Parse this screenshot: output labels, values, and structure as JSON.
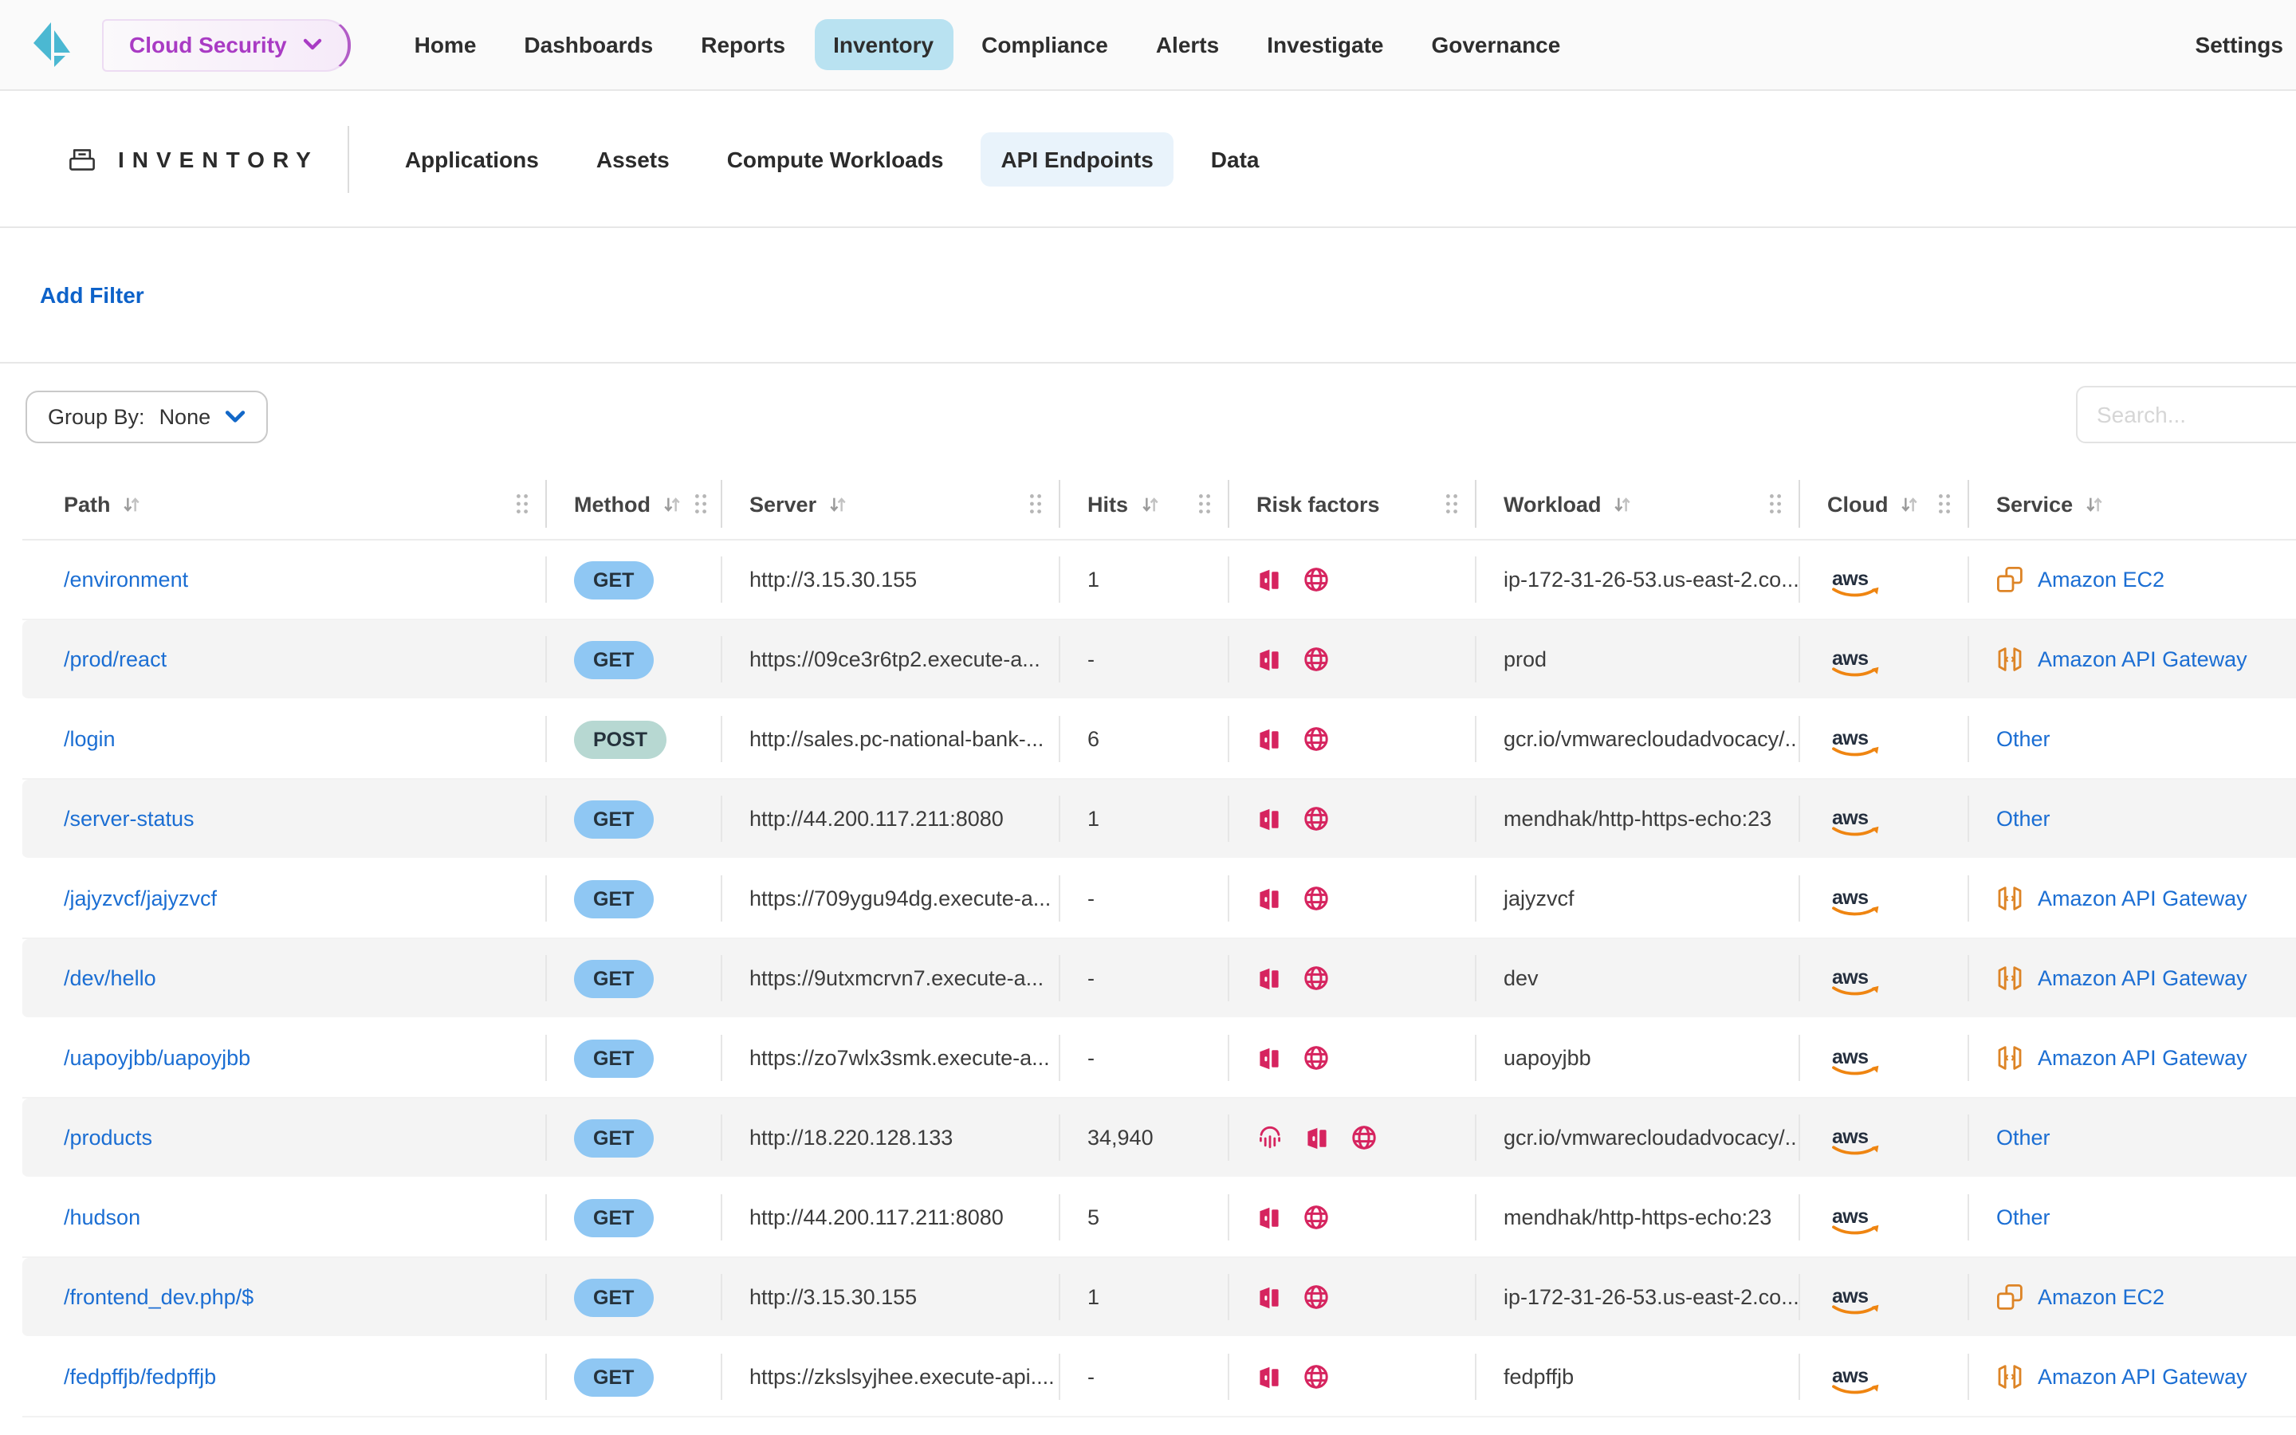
{
  "brand": {
    "product_label": "Cloud Security"
  },
  "topnav": {
    "items": [
      {
        "label": "Home",
        "active": false
      },
      {
        "label": "Dashboards",
        "active": false
      },
      {
        "label": "Reports",
        "active": false
      },
      {
        "label": "Inventory",
        "active": true
      },
      {
        "label": "Compliance",
        "active": false
      },
      {
        "label": "Alerts",
        "active": false
      },
      {
        "label": "Investigate",
        "active": false
      },
      {
        "label": "Governance",
        "active": false
      }
    ],
    "settings_label": "Settings"
  },
  "page": {
    "title": "INVENTORY",
    "tabs": [
      {
        "label": "Applications",
        "active": false
      },
      {
        "label": "Assets",
        "active": false
      },
      {
        "label": "Compute Workloads",
        "active": false
      },
      {
        "label": "API Endpoints",
        "active": true
      },
      {
        "label": "Data",
        "active": false
      }
    ]
  },
  "filters": {
    "add_filter_label": "Add Filter",
    "group_by_label": "Group By:",
    "group_by_value": "None",
    "search_placeholder": "Search..."
  },
  "table": {
    "columns": [
      {
        "id": "path",
        "label": "Path",
        "sortable": true
      },
      {
        "id": "method",
        "label": "Method",
        "sortable": true
      },
      {
        "id": "server",
        "label": "Server",
        "sortable": true
      },
      {
        "id": "hits",
        "label": "Hits",
        "sortable": true
      },
      {
        "id": "risk",
        "label": "Risk factors",
        "sortable": false
      },
      {
        "id": "workload",
        "label": "Workload",
        "sortable": true
      },
      {
        "id": "cloud",
        "label": "Cloud",
        "sortable": true
      },
      {
        "id": "service",
        "label": "Service",
        "sortable": true
      }
    ],
    "rows": [
      {
        "path": "/environment",
        "method": "GET",
        "server": "http://3.15.30.155",
        "hits": "1",
        "risk_factors": [
          "open-door",
          "globe"
        ],
        "workload": "ip-172-31-26-53.us-east-2.co...",
        "cloud": "aws",
        "service": "Amazon EC2",
        "service_icon": "ec2"
      },
      {
        "path": "/prod/react",
        "method": "GET",
        "server": "https://09ce3r6tp2.execute-a...",
        "hits": "-",
        "risk_factors": [
          "open-door",
          "globe"
        ],
        "workload": "prod",
        "cloud": "aws",
        "service": "Amazon API Gateway",
        "service_icon": "api-gateway"
      },
      {
        "path": "/login",
        "method": "POST",
        "server": "http://sales.pc-national-bank-...",
        "hits": "6",
        "risk_factors": [
          "open-door",
          "globe"
        ],
        "workload": "gcr.io/vmwarecloudadvocacy/...",
        "cloud": "aws",
        "service": "Other",
        "service_icon": null
      },
      {
        "path": "/server-status",
        "method": "GET",
        "server": "http://44.200.117.211:8080",
        "hits": "1",
        "risk_factors": [
          "open-door",
          "globe"
        ],
        "workload": "mendhak/http-https-echo:23",
        "cloud": "aws",
        "service": "Other",
        "service_icon": null
      },
      {
        "path": "/jajyzvcf/jajyzvcf",
        "method": "GET",
        "server": "https://709ygu94dg.execute-a...",
        "hits": "-",
        "risk_factors": [
          "open-door",
          "globe"
        ],
        "workload": "jajyzvcf",
        "cloud": "aws",
        "service": "Amazon API Gateway",
        "service_icon": "api-gateway"
      },
      {
        "path": "/dev/hello",
        "method": "GET",
        "server": "https://9utxmcrvn7.execute-a...",
        "hits": "-",
        "risk_factors": [
          "open-door",
          "globe"
        ],
        "workload": "dev",
        "cloud": "aws",
        "service": "Amazon API Gateway",
        "service_icon": "api-gateway"
      },
      {
        "path": "/uapoyjbb/uapoyjbb",
        "method": "GET",
        "server": "https://zo7wlx3smk.execute-a...",
        "hits": "-",
        "risk_factors": [
          "open-door",
          "globe"
        ],
        "workload": "uapoyjbb",
        "cloud": "aws",
        "service": "Amazon API Gateway",
        "service_icon": "api-gateway"
      },
      {
        "path": "/products",
        "method": "GET",
        "server": "http://18.220.128.133",
        "hits": "34,940",
        "risk_factors": [
          "fingerprint",
          "open-door",
          "globe"
        ],
        "workload": "gcr.io/vmwarecloudadvocacy/...",
        "cloud": "aws",
        "service": "Other",
        "service_icon": null
      },
      {
        "path": "/hudson",
        "method": "GET",
        "server": "http://44.200.117.211:8080",
        "hits": "5",
        "risk_factors": [
          "open-door",
          "globe"
        ],
        "workload": "mendhak/http-https-echo:23",
        "cloud": "aws",
        "service": "Other",
        "service_icon": null
      },
      {
        "path": "/frontend_dev.php/$",
        "method": "GET",
        "server": "http://3.15.30.155",
        "hits": "1",
        "risk_factors": [
          "open-door",
          "globe"
        ],
        "workload": "ip-172-31-26-53.us-east-2.co...",
        "cloud": "aws",
        "service": "Amazon EC2",
        "service_icon": "ec2"
      },
      {
        "path": "/fedpffjb/fedpffjb",
        "method": "GET",
        "server": "https://zkslsyjhee.execute-api....",
        "hits": "-",
        "risk_factors": [
          "open-door",
          "globe"
        ],
        "workload": "fedpffjb",
        "cloud": "aws",
        "service": "Amazon API Gateway",
        "service_icon": "api-gateway"
      }
    ]
  },
  "colors": {
    "brand_purple": "#a93bc4",
    "logo_teal": "#4bb8d2",
    "nav_active_bg": "#b9e2f1",
    "tab_active_bg": "#e9f3fb",
    "link_blue": "#1b6ed3",
    "add_filter_blue": "#0d62c9",
    "risk_pink": "#d6245f",
    "badge_get_bg": "#8fc7f3",
    "badge_post_bg": "#b7d8d2",
    "aws_orange": "#ef8511",
    "service_icon_orange": "#dd8426"
  }
}
